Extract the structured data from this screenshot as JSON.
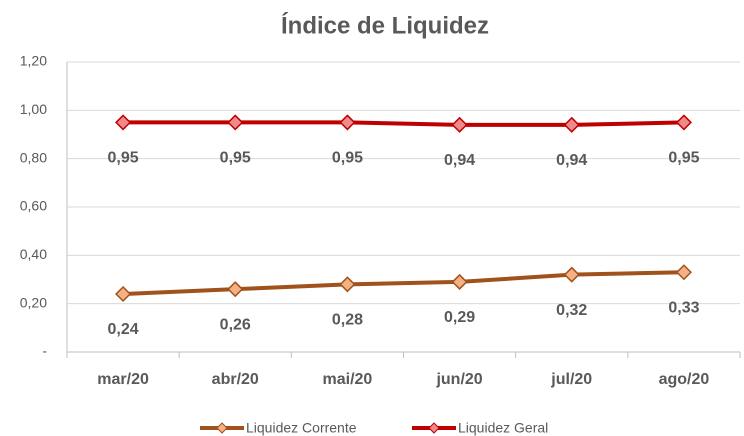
{
  "chart_data": {
    "type": "line",
    "title": "Índice de Liquidez",
    "categories": [
      "mar/20",
      "abr/20",
      "mai/20",
      "jun/20",
      "jul/20",
      "ago/20"
    ],
    "series": [
      {
        "name": "Liquidez Corrente",
        "color": "#a0521c",
        "marker_color": "#f4b183",
        "values": [
          0.24,
          0.26,
          0.28,
          0.29,
          0.32,
          0.33
        ],
        "value_labels": [
          "0,24",
          "0,26",
          "0,28",
          "0,29",
          "0,32",
          "0,33"
        ]
      },
      {
        "name": "Liquidez Geral",
        "color": "#c00000",
        "marker_color": "#ee8a8a",
        "values": [
          0.95,
          0.95,
          0.95,
          0.94,
          0.94,
          0.95
        ],
        "value_labels": [
          "0,95",
          "0,95",
          "0,95",
          "0,94",
          "0,94",
          "0,95"
        ]
      }
    ],
    "ylim": [
      0,
      1.2
    ],
    "yticks": [
      {
        "value": 0,
        "label": "-"
      },
      {
        "value": 0.2,
        "label": "0,20"
      },
      {
        "value": 0.4,
        "label": "0,40"
      },
      {
        "value": 0.6,
        "label": "0,60"
      },
      {
        "value": 0.8,
        "label": "0,80"
      },
      {
        "value": 1.0,
        "label": "1,00"
      },
      {
        "value": 1.2,
        "label": "1,20"
      }
    ],
    "grid": true,
    "legend": "bottom"
  }
}
